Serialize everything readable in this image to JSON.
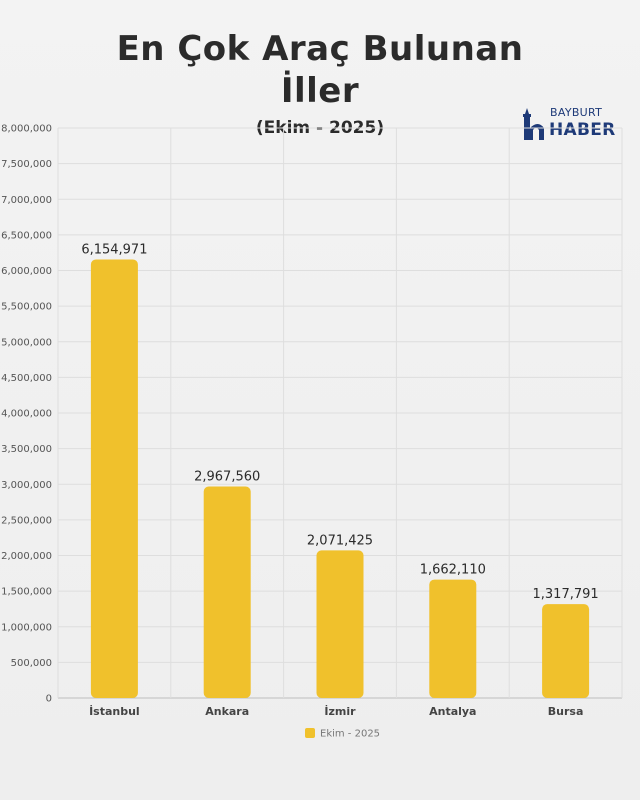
{
  "header": {
    "title_line1": "En Çok Araç Bulunan",
    "title_line2": "İller",
    "subtitle": "(Ekim - 2025)"
  },
  "logo": {
    "line1": "BAYBURT",
    "line2": "HABER",
    "color": "#1e3a78"
  },
  "chart_data": {
    "type": "bar",
    "title": "",
    "xlabel": "",
    "ylabel": "",
    "categories": [
      "İstanbul",
      "Ankara",
      "İzmir",
      "Antalya",
      "Bursa"
    ],
    "series": [
      {
        "name": "Ekim - 2025",
        "values": [
          6154971,
          2967560,
          2071425,
          1662110,
          1317791
        ],
        "value_labels": [
          "6,154,971",
          "2,967,560",
          "2,071,425",
          "1,662,110",
          "1,317,791"
        ],
        "color": "#f0c12c"
      }
    ],
    "ylim": [
      0,
      8000000
    ],
    "y_ticks": [
      0,
      500000,
      1000000,
      1500000,
      2000000,
      2500000,
      3000000,
      3500000,
      4000000,
      4500000,
      5000000,
      5500000,
      6000000,
      6500000,
      7000000,
      7500000,
      8000000
    ],
    "y_tick_labels": [
      "0",
      "500,000",
      "1,000,000",
      "1,500,000",
      "2,000,000",
      "2,500,000",
      "3,000,000",
      "3,500,000",
      "4,000,000",
      "4,500,000",
      "5,000,000",
      "5,500,000",
      "6,000,000",
      "6,500,000",
      "7,000,000",
      "7,500,000",
      "8,000,000"
    ],
    "grid": true,
    "legend_position": "bottom-center"
  }
}
